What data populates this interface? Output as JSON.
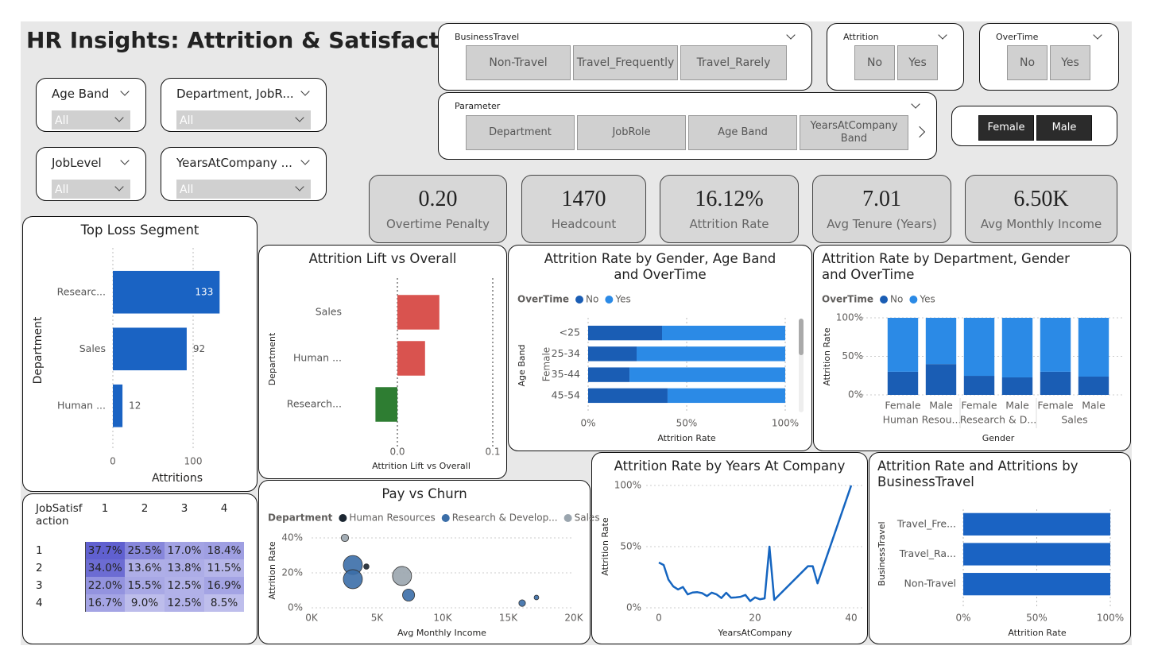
{
  "title": "HR Insights: Attrition & Satisfaction",
  "dropdown_slicers": [
    {
      "label": "Age Band",
      "value": "All"
    },
    {
      "label": "Department, JobR...",
      "value": "All"
    },
    {
      "label": "JobLevel",
      "value": "All"
    },
    {
      "label": "YearsAtCompany ...",
      "value": "All"
    }
  ],
  "button_slicers": [
    {
      "label": "BusinessTravel",
      "options": [
        "Non-Travel",
        "Travel_Frequently",
        "Travel_Rarely"
      ]
    },
    {
      "label": "Attrition",
      "options": [
        "No",
        "Yes"
      ]
    },
    {
      "label": "OverTime",
      "options": [
        "No",
        "Yes"
      ]
    },
    {
      "label": "Parameter",
      "options": [
        "Department",
        "JobRole",
        "Age Band",
        "YearsAtCompany Band"
      ]
    },
    {
      "options": [
        "Female",
        "Male"
      ]
    }
  ],
  "cards": [
    {
      "value": "0.20",
      "label": "Overtime Penalty"
    },
    {
      "value": "1470",
      "label": "Headcount"
    },
    {
      "value": "16.12%",
      "label": "Attrition Rate"
    },
    {
      "value": "7.01",
      "label": "Avg Tenure (Years)"
    },
    {
      "value": "6.50K",
      "label": "Avg Monthly Income"
    }
  ],
  "matrix": {
    "header": "JobSatisfaction",
    "columns": [
      "1",
      "2",
      "3",
      "4"
    ],
    "rows": [
      {
        "label": "1",
        "cells": [
          "37.7%",
          "25.5%",
          "17.0%",
          "18.4%"
        ]
      },
      {
        "label": "2",
        "cells": [
          "34.0%",
          "13.6%",
          "13.8%",
          "11.5%"
        ]
      },
      {
        "label": "3",
        "cells": [
          "22.0%",
          "15.5%",
          "12.5%",
          "16.9%"
        ]
      },
      {
        "label": "4",
        "cells": [
          "16.7%",
          "9.0%",
          "12.5%",
          "8.5%"
        ]
      }
    ]
  },
  "chart_data": [
    {
      "type": "bar",
      "horizontal": true,
      "title": "Top Loss Segment",
      "x_label": "Attritions",
      "y_label": "Department",
      "categories": [
        "Researc...",
        "Sales",
        "Human ..."
      ],
      "values": [
        133,
        92,
        12
      ],
      "color": "#1a63c3",
      "show_values": true,
      "xlim": [
        0,
        150
      ],
      "xticks": [
        0,
        100
      ],
      "grid": true
    },
    {
      "type": "bar",
      "horizontal": true,
      "title": "Attrition Lift vs Overall",
      "x_label": "Attrition Lift vs Overall",
      "y_label": "Department",
      "categories": [
        "Sales",
        "Human ...",
        "Research..."
      ],
      "values": [
        0.044,
        0.029,
        -0.023
      ],
      "colors": [
        "#d9534f",
        "#d9534f",
        "#2e7d32"
      ],
      "xlim": [
        -0.12,
        0.11
      ],
      "xticks": [
        {
          "value": 0,
          "label": "0.0"
        },
        {
          "value": 0.1,
          "label": "0.1"
        }
      ],
      "grid": true
    },
    {
      "type": "bar",
      "horizontal": true,
      "stacked": true,
      "title": "Attrition Rate by Gender, Age Band and OverTime",
      "x_label": "Attrition Rate",
      "y_label": "Age Band",
      "legend_title": "OverTime",
      "groups": [
        "Female"
      ],
      "categories": [
        "<25",
        "25-34",
        "35-44",
        "45-54"
      ],
      "series": [
        {
          "name": "No",
          "color": "#1a5db4",
          "values": [
            37.5,
            24.6,
            21,
            40.3
          ]
        },
        {
          "name": "Yes",
          "color": "#2b8ae6",
          "values": [
            62.5,
            75.4,
            79,
            59.7
          ]
        }
      ],
      "xlim": [
        0,
        100
      ],
      "xticks": [
        {
          "value": 0,
          "label": "0%"
        },
        {
          "value": 50,
          "label": "50%"
        },
        {
          "value": 100,
          "label": "100%"
        }
      ],
      "grid": true
    },
    {
      "type": "bar",
      "horizontal": false,
      "stacked": true,
      "title": "Attrition Rate by Department, Gender and OverTime",
      "x_label": "Gender",
      "y_label": "Attrition Rate",
      "legend_title": "OverTime",
      "groups": [
        "Human Resou...",
        "Research & D...",
        "Sales"
      ],
      "categories": [
        "Female",
        "Male",
        "Female",
        "Male",
        "Female",
        "Male"
      ],
      "series": [
        {
          "name": "No",
          "color": "#1a5db4",
          "values": [
            30,
            40,
            24.7,
            22.7,
            30,
            23.7
          ]
        },
        {
          "name": "Yes",
          "color": "#2b8ae6",
          "values": [
            70,
            60,
            75.3,
            77.3,
            70,
            76.3
          ]
        }
      ],
      "ylim": [
        0,
        100
      ],
      "yticks": [
        {
          "value": 0,
          "label": "0%"
        },
        {
          "value": 50,
          "label": "50%"
        },
        {
          "value": 100,
          "label": "100%"
        }
      ],
      "grid": true
    },
    {
      "type": "line",
      "title": "Attrition Rate by Years At Company",
      "x_label": "YearsAtCompany",
      "y_label": "Attrition Rate",
      "x": [
        0,
        1,
        2,
        3,
        4,
        5,
        6,
        7,
        8,
        9,
        10,
        11,
        12,
        13,
        14,
        15,
        16,
        17,
        18,
        19,
        20,
        21,
        22,
        23,
        24,
        31,
        32,
        33,
        40
      ],
      "values": [
        37,
        35,
        23,
        17.5,
        15,
        17,
        11,
        12.5,
        12.8,
        12,
        9.6,
        12.4,
        11,
        8,
        12.3,
        8.3,
        8.5,
        9,
        10.5,
        5.5,
        8.5,
        7,
        7.7,
        50,
        6.5,
        34,
        34,
        20,
        100
      ],
      "color": "#1565c0",
      "xlim": [
        0,
        40
      ],
      "xticks": [
        0,
        20,
        40
      ],
      "ylim": [
        0,
        100
      ],
      "yticks": [
        {
          "value": 0,
          "label": "0%"
        },
        {
          "value": 50,
          "label": "50%"
        },
        {
          "value": 100,
          "label": "100%"
        }
      ],
      "grid": true
    },
    {
      "type": "bar",
      "horizontal": true,
      "title": "Attrition Rate and Attritions by BusinessTravel",
      "x_label": "Attrition Rate",
      "y_label": "BusinessTravel",
      "categories": [
        "Travel_Fre...",
        "Travel_Ra...",
        "Non-Travel"
      ],
      "values": [
        100,
        100,
        100
      ],
      "color": "#1a63c3",
      "xlim": [
        0,
        100
      ],
      "xticks": [
        {
          "value": 0,
          "label": "0%"
        },
        {
          "value": 50,
          "label": "50%"
        },
        {
          "value": 100,
          "label": "100%"
        }
      ],
      "grid": true
    },
    {
      "type": "scatter",
      "title": "Pay vs Churn",
      "x_label": "Avg Monthly Income",
      "y_label": "Attrition Rate",
      "legend_title": "Department",
      "series": [
        {
          "name": "Human Resources",
          "color": "#1b2631",
          "x": [
            4180
          ],
          "values": [
            23.6
          ],
          "sizes": [
            8
          ]
        },
        {
          "name": "Research & Develop...",
          "color": "#3b6ea8",
          "x": [
            3150,
            3150,
            7400,
            16060,
            17150
          ],
          "values": [
            24.5,
            16.4,
            7.3,
            2.7,
            5.9
          ],
          "sizes": [
            100,
            100,
            40,
            12,
            6
          ]
        },
        {
          "name": "Sales",
          "color": "#9aa5ae",
          "x": [
            2545,
            6900
          ],
          "values": [
            40,
            18.2
          ],
          "sizes": [
            15,
            100
          ]
        }
      ],
      "xlim": [
        0,
        20000
      ],
      "xticks": [
        {
          "value": 0,
          "label": "0K"
        },
        {
          "value": 5000,
          "label": "5K"
        },
        {
          "value": 10000,
          "label": "10K"
        },
        {
          "value": 15000,
          "label": "15K"
        },
        {
          "value": 20000,
          "label": "20K"
        }
      ],
      "ylim": [
        0,
        40
      ],
      "yticks": [
        {
          "value": 0,
          "label": "0%"
        },
        {
          "value": 20,
          "label": "20%"
        },
        {
          "value": 40,
          "label": "40%"
        }
      ],
      "grid": true
    }
  ]
}
